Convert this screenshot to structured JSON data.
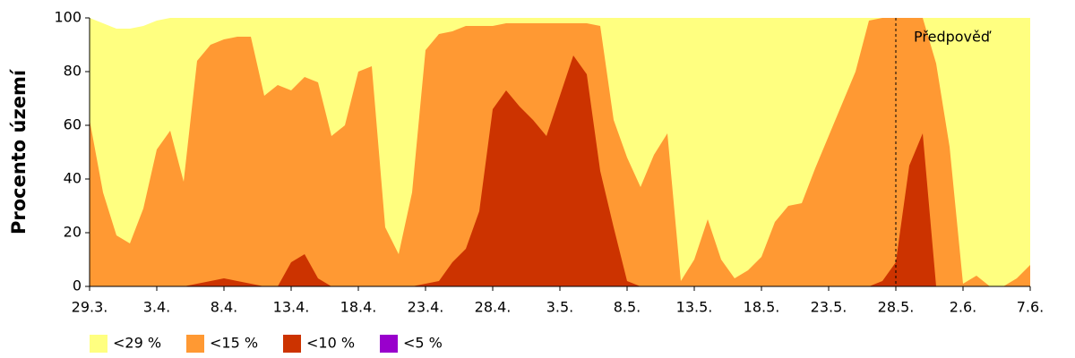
{
  "chart_data": {
    "type": "area",
    "y_label": "Procento území",
    "categories": [
      "29.3.",
      null,
      null,
      null,
      null,
      "3.4.",
      null,
      null,
      null,
      null,
      "8.4.",
      null,
      null,
      null,
      null,
      "13.4.",
      null,
      null,
      null,
      null,
      "18.4.",
      null,
      null,
      null,
      null,
      "23.4.",
      null,
      null,
      null,
      null,
      "28.4.",
      null,
      null,
      null,
      null,
      "3.5.",
      null,
      null,
      null,
      null,
      "8.5.",
      null,
      null,
      null,
      null,
      "13.5.",
      null,
      null,
      null,
      null,
      "18.5.",
      null,
      null,
      null,
      null,
      "23.5.",
      null,
      null,
      null,
      null,
      "28.5.",
      null,
      null,
      null,
      null,
      "2.6.",
      null,
      null,
      null,
      null,
      "7.6."
    ],
    "series": [
      {
        "name": "<29 %",
        "color": "#ffff80",
        "values": [
          100,
          98,
          96,
          96,
          97,
          99,
          100,
          100,
          100,
          100,
          100,
          100,
          100,
          100,
          100,
          100,
          100,
          100,
          100,
          100,
          100,
          100,
          100,
          100,
          100,
          100,
          100,
          100,
          100,
          100,
          100,
          100,
          100,
          100,
          100,
          100,
          100,
          100,
          100,
          100,
          100,
          100,
          100,
          100,
          100,
          100,
          100,
          100,
          100,
          100,
          100,
          100,
          100,
          100,
          100,
          100,
          100,
          100,
          100,
          100,
          100,
          100,
          100,
          100,
          100,
          100,
          100,
          100,
          100,
          100,
          100
        ]
      },
      {
        "name": "<15 %",
        "color": "#ff9933",
        "values": [
          62,
          35,
          19,
          16,
          29,
          51,
          58,
          39,
          84,
          90,
          92,
          93,
          93,
          71,
          75,
          73,
          78,
          76,
          56,
          60,
          80,
          82,
          22,
          12,
          35,
          88,
          94,
          95,
          97,
          97,
          97,
          98,
          98,
          98,
          98,
          98,
          98,
          98,
          97,
          62,
          48,
          37,
          49,
          57,
          2,
          10,
          25,
          10,
          3,
          6,
          11,
          24,
          30,
          31,
          44,
          56,
          68,
          80,
          99,
          100,
          100,
          100,
          100,
          83,
          52,
          1,
          4,
          0,
          0,
          3,
          8
        ]
      },
      {
        "name": "<10 %",
        "color": "#cc3300",
        "values": [
          0,
          0,
          0,
          0,
          0,
          0,
          0,
          0,
          1,
          2,
          3,
          2,
          1,
          0,
          0,
          9,
          12,
          3,
          0,
          0,
          0,
          0,
          0,
          0,
          0,
          1,
          2,
          9,
          14,
          28,
          66,
          73,
          67,
          62,
          56,
          71,
          86,
          79,
          43,
          22,
          2,
          0,
          0,
          0,
          0,
          0,
          0,
          0,
          0,
          0,
          0,
          0,
          0,
          0,
          0,
          0,
          0,
          0,
          0,
          2,
          9,
          45,
          57,
          0,
          0,
          0,
          0,
          0,
          0,
          0,
          0
        ]
      },
      {
        "name": "<5 %",
        "color": "#9900cc",
        "values": [
          0,
          0,
          0,
          0,
          0,
          0,
          0,
          0,
          0,
          0,
          0,
          0,
          0,
          0,
          0,
          0,
          0,
          0,
          0,
          0,
          0,
          0,
          0,
          0,
          0,
          0,
          0,
          0,
          0,
          0,
          0,
          0,
          0,
          0,
          0,
          0,
          0,
          0,
          0,
          0,
          0,
          0,
          0,
          0,
          0,
          0,
          0,
          0,
          0,
          0,
          0,
          0,
          0,
          0,
          0,
          0,
          0,
          0,
          0,
          0,
          0,
          0,
          0,
          0,
          0,
          0,
          0,
          0,
          0,
          0,
          0
        ]
      }
    ],
    "ylim": [
      0,
      100
    ],
    "yticks": [
      0,
      20,
      40,
      60,
      80,
      100
    ],
    "annotation": {
      "text": "Předpověď",
      "at": "28.5."
    }
  }
}
